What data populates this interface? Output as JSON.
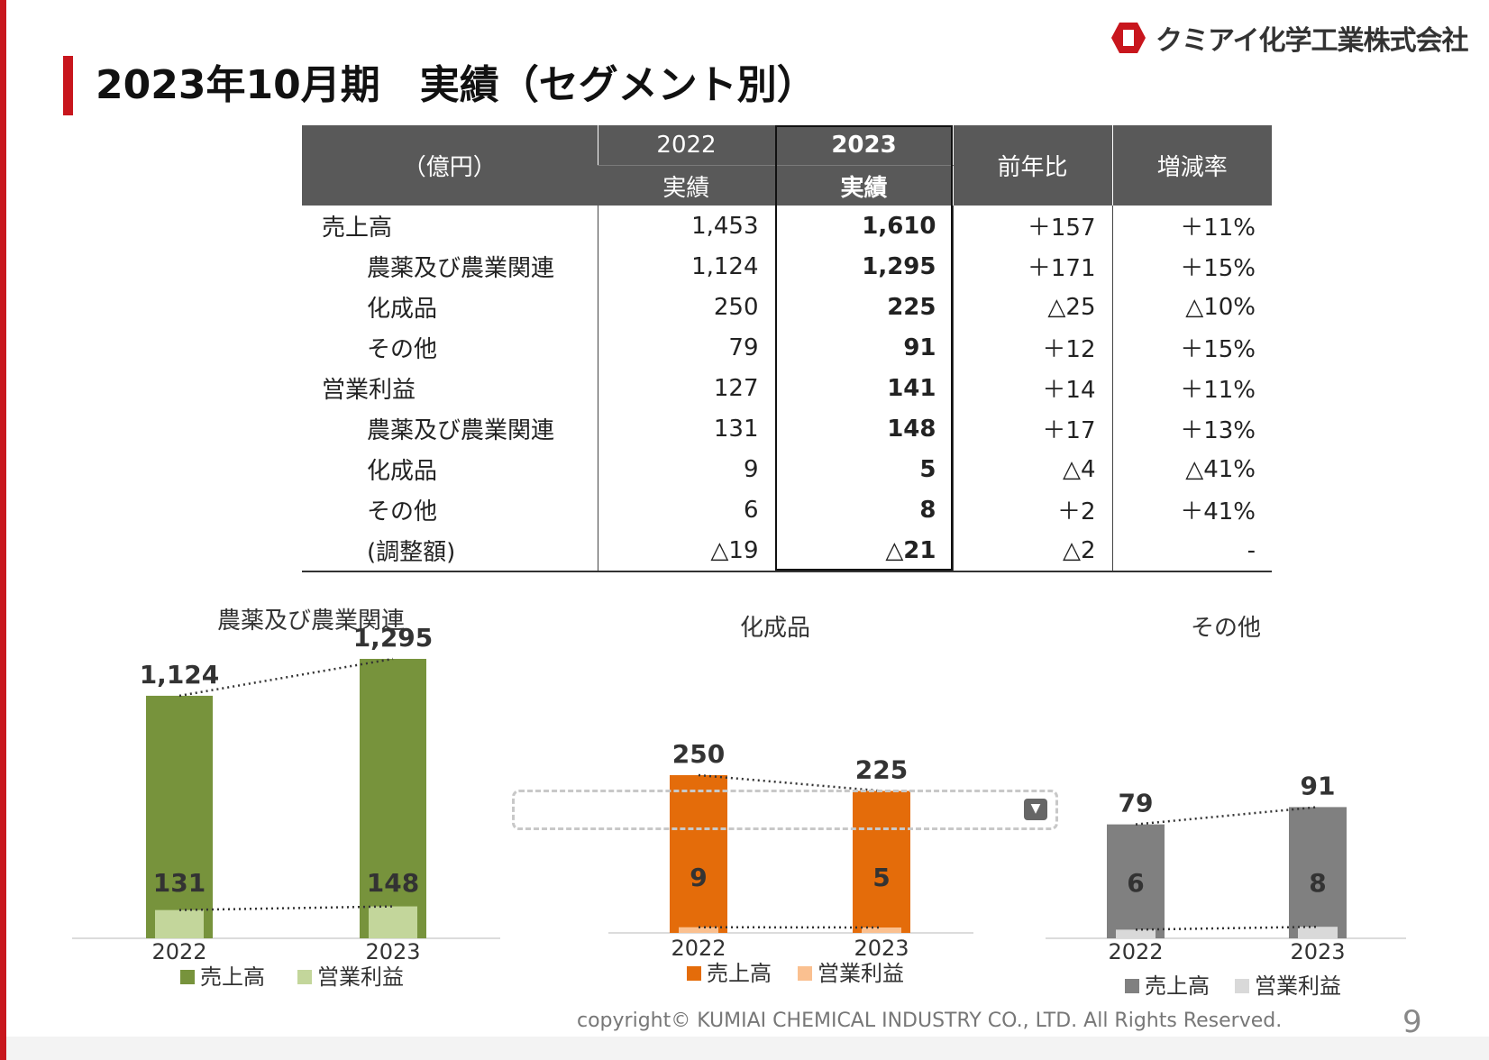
{
  "title": "2023年10月期　実績（セグメント別）",
  "logo": {
    "text": "クミアイ化学工業株式会社"
  },
  "colors": {
    "brand_red": "#c8161d",
    "agri_sales": "#77933c",
    "agri_op": "#c3d69b",
    "chem_sales": "#e46c0a",
    "chem_op": "#fac090",
    "other_sales": "#808080",
    "other_op": "#d9d9d9",
    "header_bg": "#595959"
  },
  "table": {
    "unit_label": "（億円）",
    "col_2022_year": "2022",
    "col_2022_sub": "実績",
    "col_2023_year": "2023",
    "col_2023_sub": "実績",
    "col_diff": "前年比",
    "col_rate": "増減率",
    "rows": [
      {
        "label": "売上高",
        "v2022": "1,453",
        "v2023": "1,610",
        "diff": "＋157",
        "rate": "＋11%"
      },
      {
        "label": "農薬及び農業関連",
        "v2022": "1,124",
        "v2023": "1,295",
        "diff": "＋171",
        "rate": "＋15%"
      },
      {
        "label": "化成品",
        "v2022": "250",
        "v2023": "225",
        "diff": "△25",
        "rate": "△10%"
      },
      {
        "label": "その他",
        "v2022": "79",
        "v2023": "91",
        "diff": "＋12",
        "rate": "＋15%"
      },
      {
        "label": "営業利益",
        "v2022": "127",
        "v2023": "141",
        "diff": "＋14",
        "rate": "＋11%"
      },
      {
        "label": "農薬及び農業関連",
        "v2022": "131",
        "v2023": "148",
        "diff": "＋17",
        "rate": "＋13%"
      },
      {
        "label": "化成品",
        "v2022": "9",
        "v2023": "5",
        "diff": "△4",
        "rate": "△41%"
      },
      {
        "label": "その他",
        "v2022": "6",
        "v2023": "8",
        "diff": "＋2",
        "rate": "＋41%"
      },
      {
        "label": "(調整額)",
        "v2022": "△19",
        "v2023": "△21",
        "diff": "△2",
        "rate": "-"
      }
    ]
  },
  "chart_data": [
    {
      "type": "bar",
      "title": "農薬及び農業関連",
      "categories": [
        "2022",
        "2023"
      ],
      "series": [
        {
          "name": "売上高",
          "values": [
            1124,
            1295
          ],
          "labels": [
            "1,124",
            "1,295"
          ]
        },
        {
          "name": "営業利益",
          "values": [
            131,
            148
          ],
          "labels": [
            "131",
            "148"
          ]
        }
      ]
    },
    {
      "type": "bar",
      "title": "化成品",
      "categories": [
        "2022",
        "2023"
      ],
      "series": [
        {
          "name": "売上高",
          "values": [
            250,
            225
          ],
          "labels": [
            "250",
            "225"
          ]
        },
        {
          "name": "営業利益",
          "values": [
            9,
            5
          ],
          "labels": [
            "9",
            "5"
          ]
        }
      ]
    },
    {
      "type": "bar",
      "title": "その他",
      "categories": [
        "2022",
        "2023"
      ],
      "series": [
        {
          "name": "売上高",
          "values": [
            79,
            91
          ],
          "labels": [
            "79",
            "91"
          ]
        },
        {
          "name": "営業利益",
          "values": [
            6,
            8
          ],
          "labels": [
            "6",
            "8"
          ]
        }
      ]
    }
  ],
  "dropdown_icon": "chevron-down-icon",
  "footer": {
    "copyright": "copyright© KUMIAI CHEMICAL INDUSTRY CO., LTD. All Rights Reserved.",
    "page_number": "9"
  }
}
